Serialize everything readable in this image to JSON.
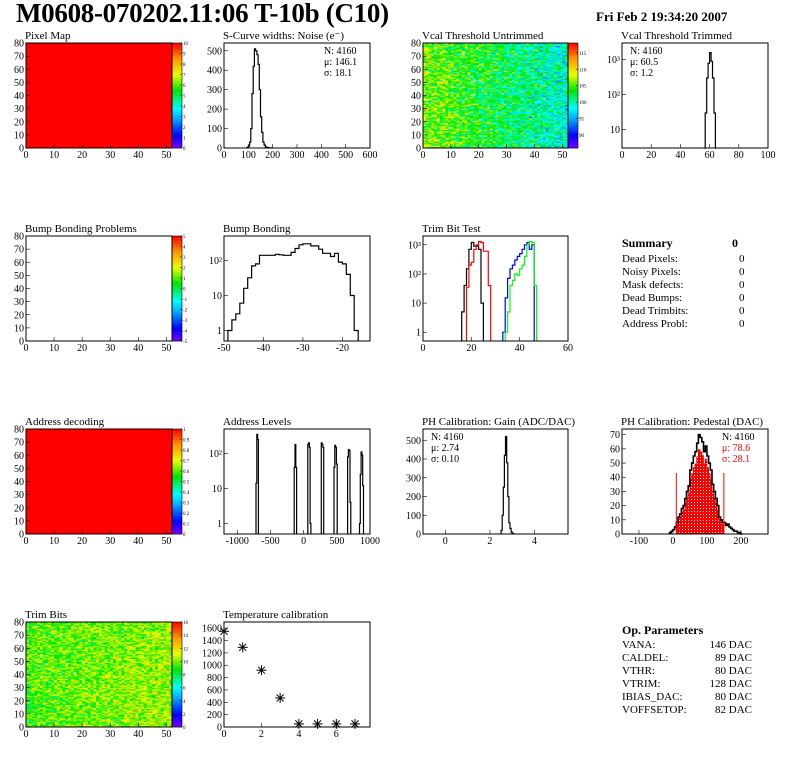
{
  "header": {
    "title": "M0608-070202.11:06 T-10b (C10)",
    "date": "Fri Feb  2 19:34:20 2007"
  },
  "summary": {
    "title": "Summary",
    "total": "0",
    "items": [
      {
        "label": "Dead Pixels:",
        "value": "0"
      },
      {
        "label": "Noisy Pixels:",
        "value": "0"
      },
      {
        "label": "Mask defects:",
        "value": "0"
      },
      {
        "label": "Dead Bumps:",
        "value": "0"
      },
      {
        "label": "Dead Trimbits:",
        "value": "0"
      },
      {
        "label": "Address Probl:",
        "value": "0"
      }
    ]
  },
  "op_parameters": {
    "title": "Op. Parameters",
    "items": [
      {
        "label": "VANA:",
        "value": "146 DAC"
      },
      {
        "label": "CALDEL:",
        "value": "89 DAC"
      },
      {
        "label": "VTHR:",
        "value": "80 DAC"
      },
      {
        "label": "VTRIM:",
        "value": "128 DAC"
      },
      {
        "label": "IBIAS_DAC:",
        "value": "80 DAC"
      },
      {
        "label": "VOFFSETOP:",
        "value": "82 DAC"
      }
    ]
  },
  "colors": {
    "palette": "rainbow",
    "frame": "#000000",
    "pedestal_fill": "#ff0000"
  },
  "chart_data": [
    {
      "type": "heatmap",
      "title": "Pixel Map",
      "xlim": [
        0,
        52
      ],
      "ylim": [
        0,
        80
      ],
      "x_ticks": [
        0,
        10,
        20,
        30,
        40,
        50
      ],
      "y_ticks": [
        0,
        10,
        20,
        30,
        40,
        50,
        60,
        70,
        80
      ],
      "zlim": [
        0,
        10
      ],
      "z_ticks": [
        0,
        1,
        2,
        3,
        4,
        5,
        6,
        7,
        8,
        9,
        10
      ],
      "z_uniform": 10
    },
    {
      "type": "bar",
      "title": "S-Curve widths: Noise (e⁻)",
      "xlim": [
        0,
        600
      ],
      "ylim": [
        0,
        540
      ],
      "x_ticks": [
        0,
        100,
        200,
        300,
        400,
        500,
        600
      ],
      "y_ticks": [
        0,
        100,
        200,
        300,
        400,
        500
      ],
      "series": [
        {
          "color": "#000000",
          "x_start": 95,
          "bin_width": 5,
          "counts": [
            3,
            10,
            30,
            100,
            280,
            420,
            510,
            500,
            480,
            430,
            300,
            160,
            80,
            30,
            15,
            5,
            3,
            2,
            1,
            1
          ]
        }
      ],
      "stats": [
        "N: 4160",
        "μ: 146.1",
        "σ: 18.1"
      ],
      "stats_placement": "top-right"
    },
    {
      "type": "heatmap",
      "title": "Vcal Threshold Untrimmed",
      "xlim": [
        0,
        52
      ],
      "ylim": [
        0,
        80
      ],
      "x_ticks": [
        0,
        10,
        20,
        30,
        40,
        50
      ],
      "y_ticks": [
        0,
        10,
        20,
        30,
        40,
        50,
        60,
        70,
        80
      ],
      "zlim": [
        86,
        118
      ],
      "z_ticks": [
        90,
        95,
        100,
        105,
        110,
        115
      ],
      "z_mean_left": 106,
      "z_mean_right": 99,
      "z_spread": 4
    },
    {
      "type": "bar",
      "title": "Vcal Threshold Trimmed",
      "xlim": [
        0,
        100
      ],
      "ylim": [
        3,
        3000
      ],
      "log_y": true,
      "x_ticks": [
        0,
        20,
        40,
        60,
        80,
        100
      ],
      "y_ticks": [
        10,
        100,
        1000
      ],
      "y_tick_labels": [
        "10",
        "10²",
        "10³"
      ],
      "series": [
        {
          "color": "#000000",
          "x_start": 56,
          "bin_width": 1,
          "counts": [
            3,
            30,
            300,
            800,
            1600,
            900,
            300,
            30,
            3
          ]
        }
      ],
      "stats": [
        "N: 4160",
        "μ: 60.5",
        "σ:  1.2"
      ],
      "stats_placement": "top-left"
    },
    {
      "type": "heatmap",
      "title": "Bump Bonding Problems",
      "xlim": [
        0,
        52
      ],
      "ylim": [
        0,
        80
      ],
      "x_ticks": [
        0,
        10,
        20,
        30,
        40,
        50
      ],
      "y_ticks": [
        0,
        10,
        20,
        30,
        40,
        50,
        60,
        70,
        80
      ],
      "zlim": [
        -5,
        5
      ],
      "z_ticks": [
        -5,
        -4,
        -3,
        -2,
        -1,
        0,
        1,
        2,
        3,
        4,
        5
      ],
      "empty": true
    },
    {
      "type": "bar",
      "title": "Bump Bonding",
      "xlim": [
        -50,
        -13
      ],
      "ylim": [
        0.5,
        500
      ],
      "log_y": true,
      "x_ticks": [
        -50,
        -40,
        -30,
        -20
      ],
      "y_ticks": [
        1,
        10,
        100
      ],
      "y_tick_labels": [
        "1",
        "10",
        "10²"
      ],
      "series": [
        {
          "color": "#000000",
          "x_start": -49,
          "bin_width": 1,
          "counts": [
            1,
            2,
            3,
            6,
            16,
            32,
            70,
            80,
            140,
            140,
            140,
            140,
            150,
            145,
            140,
            140,
            170,
            220,
            280,
            300,
            300,
            260,
            260,
            210,
            160,
            160,
            130,
            160,
            90,
            80,
            40,
            10,
            1
          ]
        }
      ]
    },
    {
      "type": "bar",
      "title": "Trim Bit Test",
      "xlim": [
        0,
        60
      ],
      "ylim": [
        0.5,
        2000
      ],
      "log_y": true,
      "x_ticks": [
        0,
        20,
        40,
        60
      ],
      "y_ticks": [
        1,
        10,
        100,
        1000
      ],
      "y_tick_labels": [
        "1",
        "10",
        "10²",
        "10³"
      ],
      "series": [
        {
          "color": "#000000",
          "x_start": 16,
          "bin_width": 1,
          "counts": [
            5,
            40,
            150,
            700,
            1200,
            900,
            900,
            700,
            10
          ]
        },
        {
          "color": "#ff0000",
          "x_start": 18,
          "bin_width": 1,
          "counts": [
            35,
            200,
            250,
            700,
            1000,
            1300,
            1200,
            600,
            600,
            40
          ]
        },
        {
          "color": "#0000ff",
          "x_start": 33,
          "bin_width": 1,
          "counts": [
            1,
            15,
            70,
            150,
            200,
            300,
            400,
            500,
            700,
            1000,
            1200,
            700,
            1000
          ]
        },
        {
          "color": "#00ff00",
          "x_start": 34,
          "bin_width": 1,
          "counts": [
            1,
            5,
            40,
            60,
            100,
            90,
            150,
            200,
            400,
            1000,
            1300,
            1200,
            40
          ]
        }
      ]
    },
    {
      "type": "heatmap",
      "title": "Address decoding",
      "xlim": [
        0,
        52
      ],
      "ylim": [
        0,
        80
      ],
      "x_ticks": [
        0,
        10,
        20,
        30,
        40,
        50
      ],
      "y_ticks": [
        0,
        10,
        20,
        30,
        40,
        50,
        60,
        70,
        80
      ],
      "zlim": [
        0,
        1
      ],
      "z_ticks": [
        0,
        0.1,
        0.2,
        0.3,
        0.4,
        0.5,
        0.6,
        0.7,
        0.8,
        0.9,
        1
      ],
      "z_uniform": 1
    },
    {
      "type": "bar",
      "title": "Address Levels",
      "xlim": [
        -1200,
        1000
      ],
      "ylim": [
        0.5,
        500
      ],
      "log_y": true,
      "x_ticks": [
        -1000,
        -500,
        0,
        500,
        1000
      ],
      "y_ticks": [
        1,
        10,
        100
      ],
      "y_tick_labels": [
        "1",
        "10",
        "10²"
      ],
      "series": [
        {
          "color": "#000000",
          "x_start": -718,
          "bin_width": 12,
          "counts": [
            14,
            350,
            250
          ]
        },
        {
          "color": "#000000",
          "x_start": -142,
          "bin_width": 12,
          "counts": [
            40,
            180,
            40
          ]
        },
        {
          "color": "#000000",
          "x_start": 62,
          "bin_width": 12,
          "counts": [
            180,
            200,
            150,
            1
          ]
        },
        {
          "color": "#000000",
          "x_start": 266,
          "bin_width": 12,
          "counts": [
            200,
            180,
            150
          ]
        },
        {
          "color": "#000000",
          "x_start": 458,
          "bin_width": 12,
          "counts": [
            40,
            170,
            150,
            50
          ]
        },
        {
          "color": "#000000",
          "x_start": 662,
          "bin_width": 12,
          "counts": [
            80,
            130,
            120,
            4
          ]
        },
        {
          "color": "#000000",
          "x_start": 842,
          "bin_width": 12,
          "counts": [
            1,
            25,
            110,
            90,
            12
          ]
        }
      ]
    },
    {
      "type": "bar",
      "title": "PH Calibration: Gain (ADC/DAC)",
      "xlim": [
        -1,
        5.5
      ],
      "ylim": [
        0,
        560
      ],
      "x_ticks": [
        0,
        2,
        4
      ],
      "y_ticks": [
        0,
        100,
        200,
        300,
        400,
        500
      ],
      "series": [
        {
          "color": "#000000",
          "x_start": 2.5,
          "bin_width": 0.05,
          "counts": [
            20,
            100,
            250,
            420,
            520,
            380,
            200,
            60,
            30,
            10,
            3,
            1
          ]
        }
      ],
      "stats": [
        "N: 4160",
        "μ: 2.74",
        "σ: 0.10"
      ],
      "stats_placement": "top-left"
    },
    {
      "type": "bar",
      "title": "PH Calibration: Pedestal (DAC)",
      "xlim": [
        -150,
        280
      ],
      "ylim": [
        0,
        74
      ],
      "x_ticks": [
        -100,
        0,
        100,
        200
      ],
      "y_ticks": [
        0,
        10,
        20,
        30,
        40,
        50,
        60,
        70
      ],
      "series": [
        {
          "color": "#000000",
          "x_start": -10,
          "bin_width": 5,
          "counts": [
            1,
            2,
            3,
            5,
            8,
            12,
            14,
            18,
            20,
            25,
            30,
            34,
            45,
            50,
            55,
            58,
            64,
            70,
            68,
            65,
            58,
            62,
            55,
            50,
            45,
            35,
            30,
            25,
            20,
            12,
            10,
            8,
            8,
            6,
            7,
            5,
            4,
            3,
            2,
            2,
            1,
            1,
            0
          ]
        }
      ],
      "fill_range": [
        10,
        150
      ],
      "cut_lines": [
        {
          "x": 10,
          "y": 43
        },
        {
          "x": 150,
          "y": 43
        }
      ],
      "stats": [
        "N: 4160",
        "μ: 78.6",
        "σ: 28.1"
      ],
      "stats_colors": [
        "#000000",
        "#ff0000",
        "#ff0000"
      ],
      "stats_placement": "top-right"
    },
    {
      "type": "heatmap",
      "title": "Trim Bits",
      "xlim": [
        0,
        52
      ],
      "ylim": [
        0,
        80
      ],
      "x_ticks": [
        0,
        10,
        20,
        30,
        40,
        50
      ],
      "y_ticks": [
        0,
        10,
        20,
        30,
        40,
        50,
        60,
        70,
        80
      ],
      "zlim": [
        0,
        16
      ],
      "z_ticks": [
        0,
        2,
        4,
        6,
        8,
        10,
        12,
        14,
        16
      ],
      "z_mean_left": 9.5,
      "z_mean_right": 10.5,
      "z_spread": 1.6
    },
    {
      "type": "scatter",
      "title": "Temperature calibration",
      "xlim": [
        0,
        7.8
      ],
      "ylim": [
        0,
        1700
      ],
      "x_ticks": [
        0,
        2,
        4,
        6
      ],
      "y_ticks": [
        0,
        200,
        400,
        600,
        800,
        1000,
        1200,
        1400,
        1600
      ],
      "marker": "asterisk",
      "x": [
        0,
        1,
        2,
        3,
        4,
        5,
        6,
        7
      ],
      "y": [
        1550,
        1290,
        920,
        470,
        50,
        50,
        50,
        50
      ]
    }
  ]
}
